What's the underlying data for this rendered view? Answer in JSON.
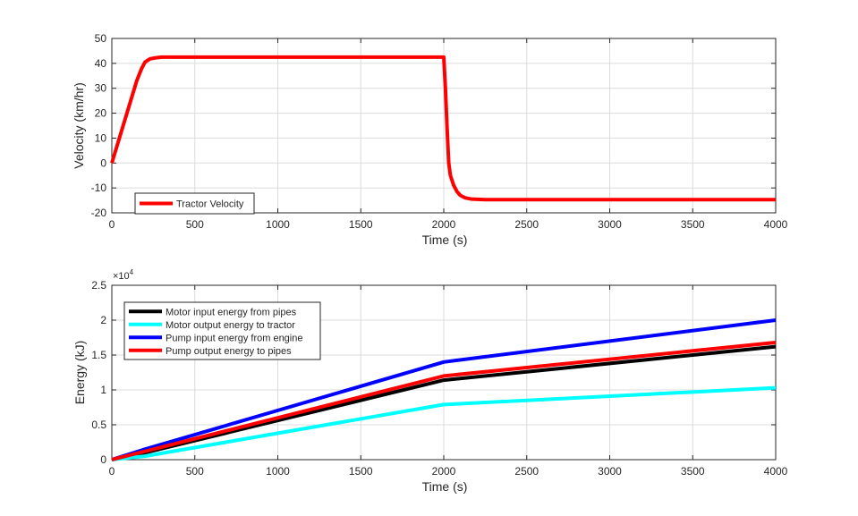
{
  "chart_data": [
    {
      "type": "line",
      "id": "velocity",
      "title": "",
      "xlabel": "Time (s)",
      "ylabel": "Velocity (km/hr)",
      "xlim": [
        0,
        4000
      ],
      "ylim": [
        -20,
        50
      ],
      "xticks": [
        0,
        500,
        1000,
        1500,
        2000,
        2500,
        3000,
        3500,
        4000
      ],
      "yticks": [
        -20,
        -10,
        0,
        10,
        20,
        30,
        40,
        50
      ],
      "grid": true,
      "legend_location": "bottom-left",
      "series": [
        {
          "name": "Tractor Velocity",
          "color": "#ff0000",
          "x": [
            0,
            50,
            100,
            150,
            180,
            200,
            230,
            260,
            300,
            400,
            1000,
            1500,
            1990,
            2000,
            2010,
            2020,
            2030,
            2040,
            2060,
            2080,
            2100,
            2130,
            2170,
            2250,
            2500,
            3000,
            4000
          ],
          "y": [
            0,
            11,
            22,
            33,
            38,
            40.5,
            41.8,
            42.2,
            42.5,
            42.5,
            42.5,
            42.5,
            42.5,
            42.5,
            30,
            14,
            0,
            -5,
            -9,
            -11.5,
            -13,
            -14,
            -14.5,
            -14.7,
            -14.7,
            -14.7,
            -14.7
          ]
        }
      ]
    },
    {
      "type": "line",
      "id": "energy",
      "title": "",
      "xlabel": "Time (s)",
      "ylabel": "Energy (kJ)",
      "exponent_label": "×10",
      "exponent_power": "4",
      "xlim": [
        0,
        4000
      ],
      "ylim": [
        0,
        2.5
      ],
      "xticks": [
        0,
        500,
        1000,
        1500,
        2000,
        2500,
        3000,
        3500,
        4000
      ],
      "yticks": [
        0,
        0.5,
        1,
        1.5,
        2,
        2.5
      ],
      "grid": true,
      "legend_location": "top-left",
      "series": [
        {
          "name": "Motor input energy from pipes",
          "color": "#000000",
          "x": [
            0,
            200,
            2000,
            4000
          ],
          "y": [
            0,
            0.1,
            1.14,
            1.62
          ]
        },
        {
          "name": "Motor output energy to tractor",
          "color": "#00ffff",
          "x": [
            0,
            200,
            2000,
            4000
          ],
          "y": [
            0,
            0.05,
            0.79,
            1.03
          ]
        },
        {
          "name": "Pump input energy from engine",
          "color": "#0000ff",
          "x": [
            0,
            200,
            2000,
            4000
          ],
          "y": [
            0,
            0.15,
            1.4,
            2.0
          ]
        },
        {
          "name": "Pump output energy to pipes",
          "color": "#ff0000",
          "x": [
            0,
            200,
            2000,
            4000
          ],
          "y": [
            0,
            0.12,
            1.2,
            1.68
          ]
        }
      ]
    }
  ]
}
